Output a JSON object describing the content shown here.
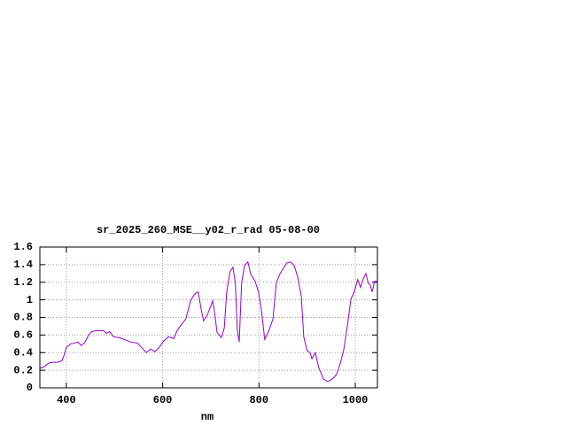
{
  "chart_data": {
    "type": "line",
    "title": "sr_2025_260_MSE__y02_r_rad 05-08-00",
    "x_label": "nm",
    "x": [
      345,
      354,
      363,
      372,
      382,
      391,
      396,
      400,
      409,
      418,
      424,
      431,
      439,
      446,
      453,
      464,
      477,
      483,
      490,
      498,
      510,
      520,
      534,
      547,
      556,
      566,
      575,
      584,
      593,
      602,
      612,
      623,
      630,
      639,
      648,
      658,
      667,
      674,
      680,
      685,
      693,
      704,
      707,
      713,
      722,
      728,
      733,
      740,
      746,
      751,
      755,
      759,
      764,
      770,
      777,
      783,
      792,
      799,
      805,
      812,
      820,
      829,
      836,
      843,
      851,
      858,
      866,
      873,
      880,
      888,
      893,
      900,
      906,
      910,
      917,
      924,
      934,
      943,
      952,
      961,
      969,
      976,
      983,
      991,
      998,
      1005,
      1011,
      1016,
      1022,
      1027,
      1031,
      1035,
      1040,
      1046
    ],
    "series": [
      {
        "color": "#9400d3",
        "values": [
          0.22,
          0.24,
          0.28,
          0.29,
          0.29,
          0.31,
          0.38,
          0.46,
          0.5,
          0.51,
          0.52,
          0.48,
          0.52,
          0.6,
          0.64,
          0.65,
          0.65,
          0.62,
          0.64,
          0.58,
          0.57,
          0.55,
          0.52,
          0.51,
          0.46,
          0.4,
          0.44,
          0.41,
          0.46,
          0.53,
          0.58,
          0.56,
          0.65,
          0.72,
          0.78,
          0.99,
          1.07,
          1.09,
          0.89,
          0.76,
          0.83,
          0.99,
          0.89,
          0.63,
          0.57,
          0.68,
          1.09,
          1.32,
          1.37,
          1.19,
          0.66,
          0.52,
          1.19,
          1.39,
          1.43,
          1.29,
          1.21,
          1.09,
          0.89,
          0.55,
          0.64,
          0.78,
          1.19,
          1.29,
          1.36,
          1.42,
          1.43,
          1.39,
          1.27,
          1.04,
          0.58,
          0.42,
          0.4,
          0.33,
          0.4,
          0.23,
          0.1,
          0.07,
          0.1,
          0.15,
          0.28,
          0.43,
          0.68,
          1.01,
          1.09,
          1.23,
          1.14,
          1.23,
          1.3,
          1.19,
          1.17,
          1.09,
          1.21,
          1.21
        ]
      }
    ],
    "xlim": [
      345,
      1046
    ],
    "ylim": [
      0,
      1.6
    ],
    "xticks": [
      400,
      600,
      800,
      1000
    ],
    "yticks": [
      0,
      0.2,
      0.4,
      0.6,
      0.8,
      1,
      1.2,
      1.4,
      1.6
    ],
    "grid": true
  }
}
